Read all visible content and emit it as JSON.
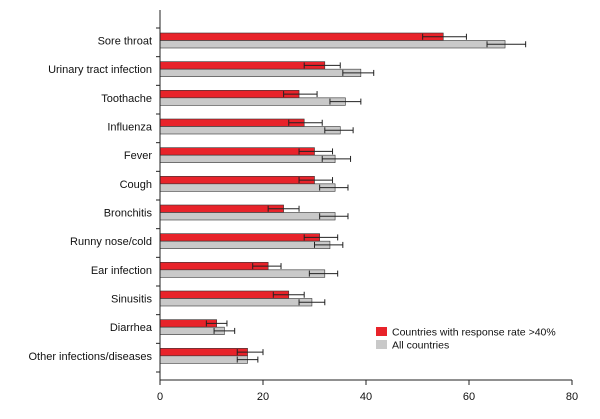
{
  "chart_data": {
    "type": "bar",
    "orientation": "horizontal",
    "categories": [
      "Sore throat",
      "Urinary tract infection",
      "Toothache",
      "Influenza",
      "Fever",
      "Cough",
      "Bronchitis",
      "Runny nose/cold",
      "Ear infection",
      "Sinusitis",
      "Diarrhea",
      "Other infections/diseases"
    ],
    "series": [
      {
        "name": "Countries with response rate >40%",
        "color": "#e8232a",
        "values": [
          55,
          32,
          27,
          28,
          30,
          30,
          24,
          31,
          21,
          25,
          11,
          17
        ],
        "error_low": [
          51,
          28,
          24,
          25,
          27,
          27,
          21,
          28,
          18,
          22,
          9,
          15
        ],
        "error_high": [
          59.5,
          35,
          30.5,
          31.5,
          33.5,
          33.5,
          27,
          34.5,
          23.5,
          28,
          13,
          20
        ]
      },
      {
        "name": "All countries",
        "color": "#c9c9c9",
        "values": [
          67,
          39,
          36,
          35,
          34,
          34,
          34,
          33,
          32,
          29.5,
          12.5,
          17
        ],
        "error_low": [
          63.5,
          35.5,
          33,
          32,
          31.5,
          31,
          31,
          30,
          29,
          27,
          10.5,
          15
        ],
        "error_high": [
          71,
          41.5,
          39,
          37.5,
          37,
          36.5,
          36.5,
          35.5,
          34.5,
          32,
          14.5,
          19
        ]
      }
    ],
    "xlim": [
      0,
      80
    ],
    "x_ticks": [
      "0",
      "20",
      "40",
      "60",
      "80"
    ],
    "grid": false,
    "legend_position": "bottom-right",
    "title": "",
    "xlabel": "",
    "ylabel": ""
  }
}
